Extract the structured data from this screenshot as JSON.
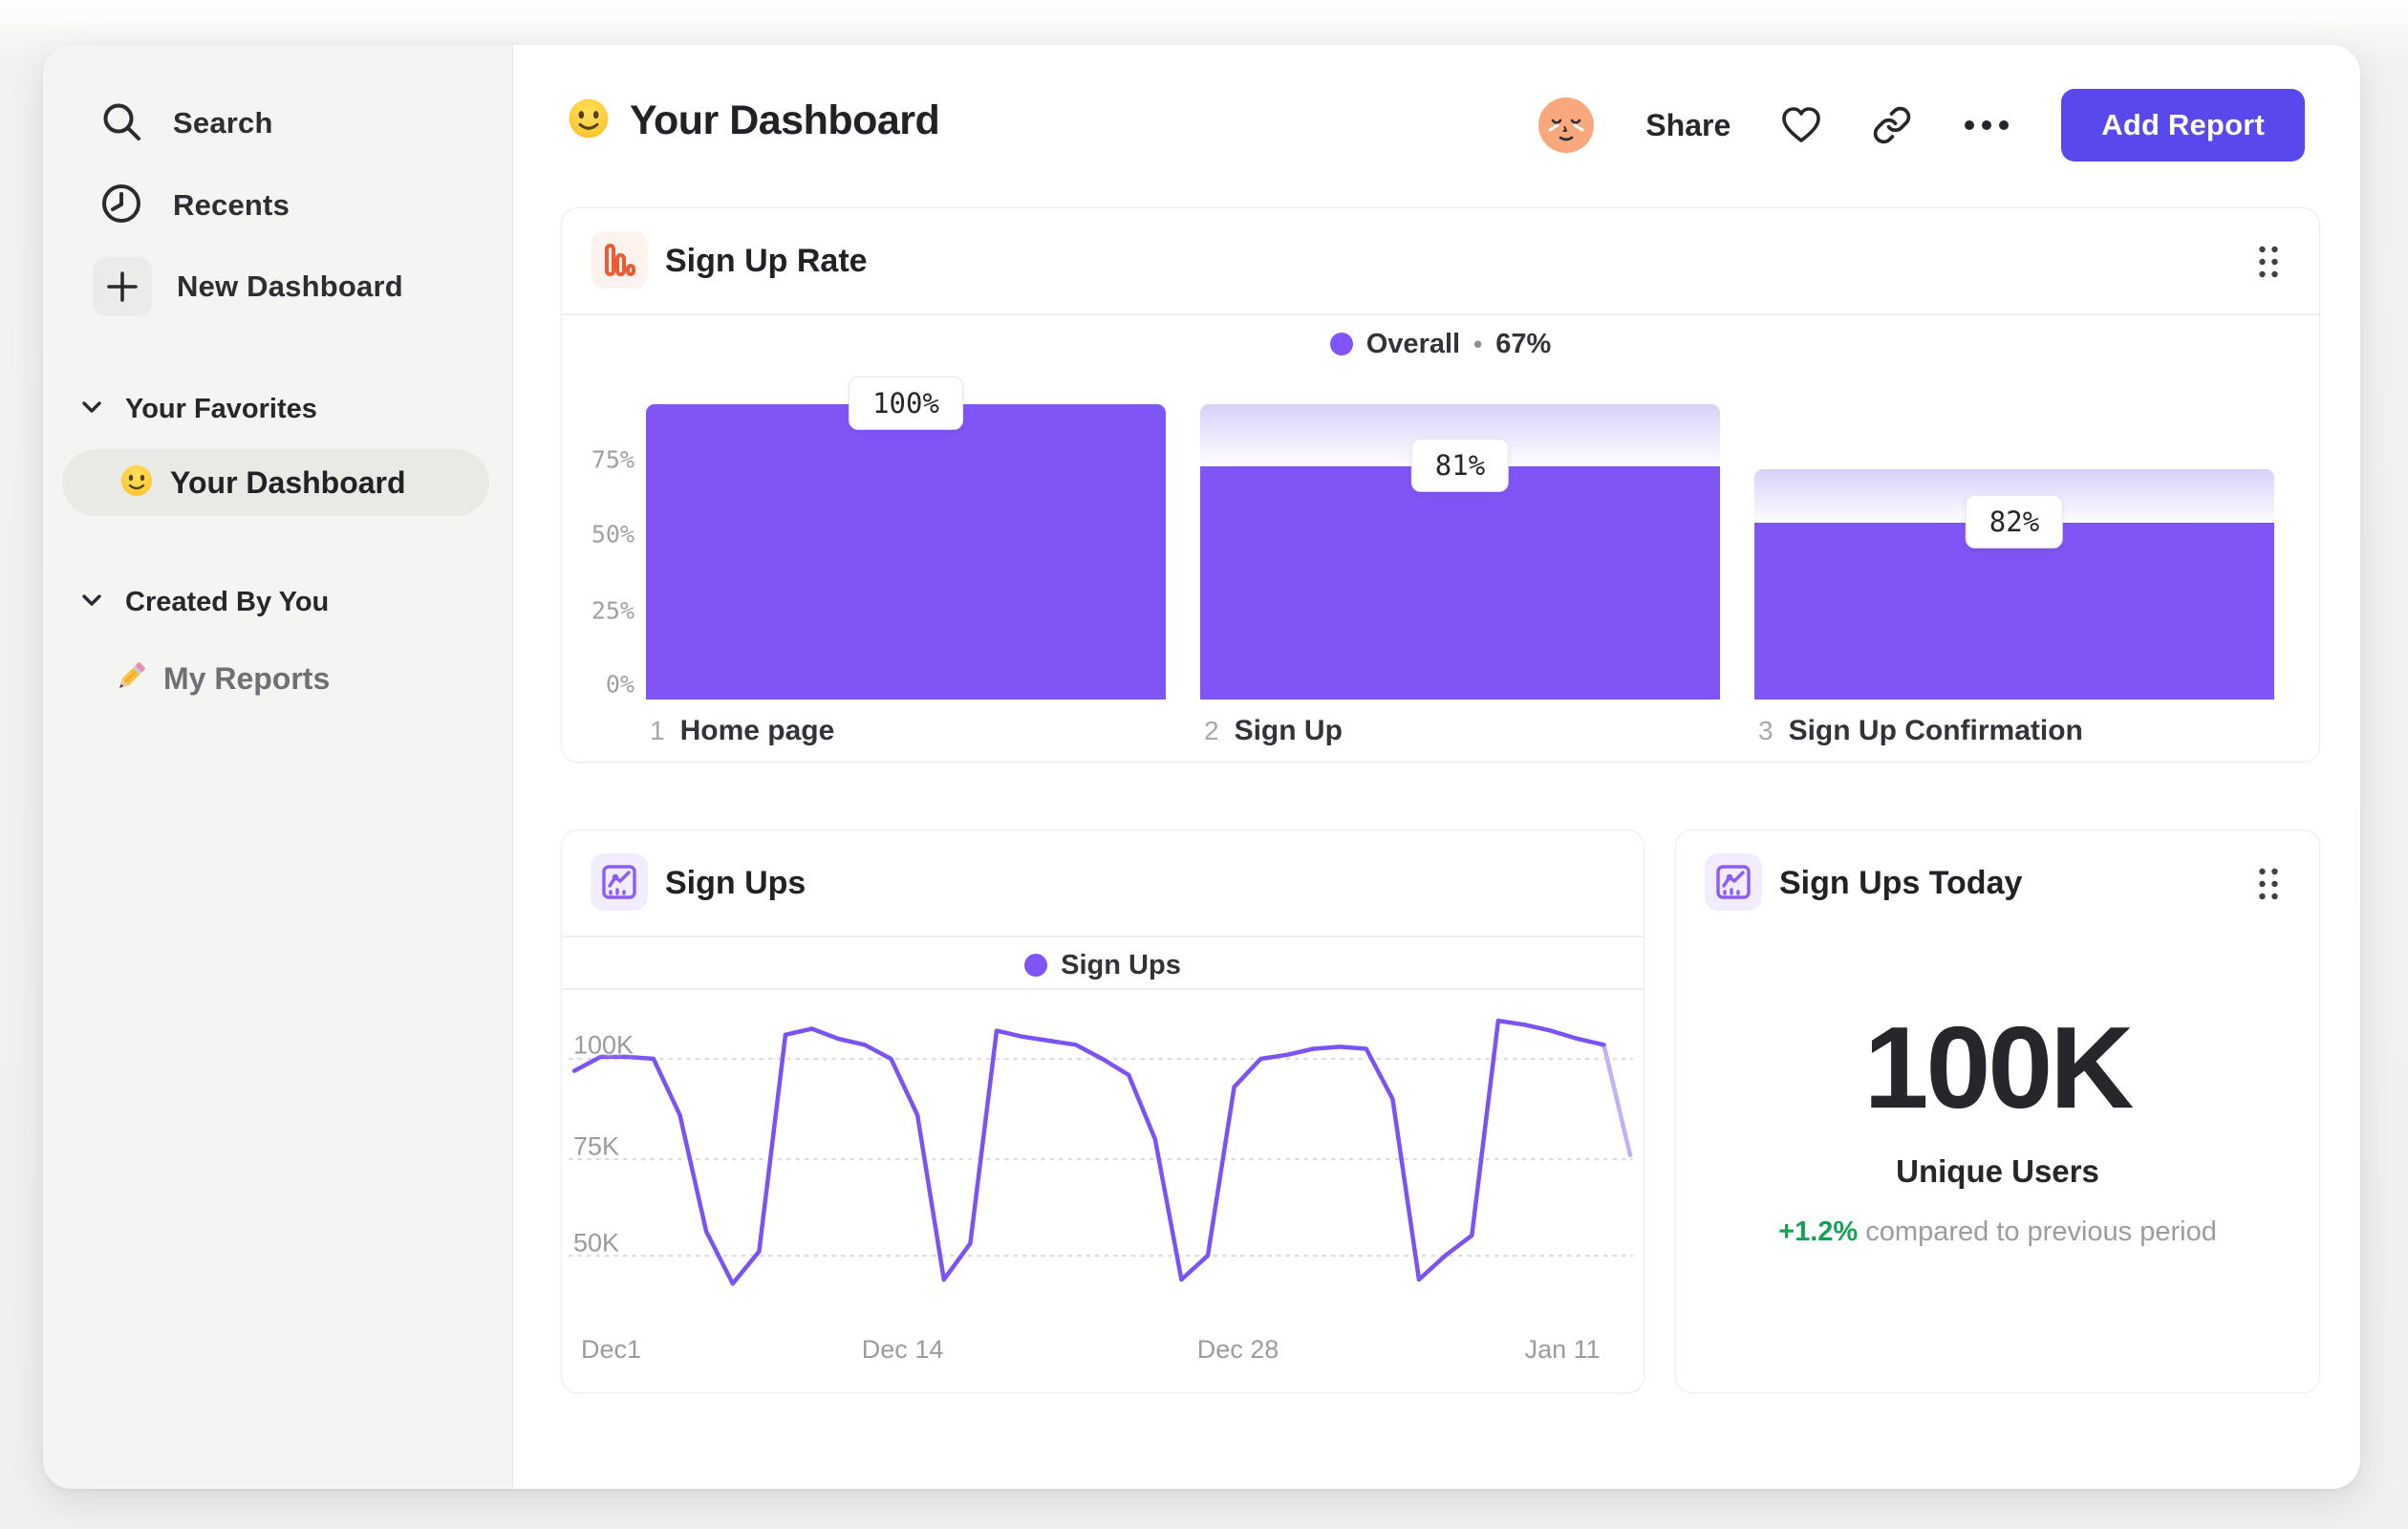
{
  "colors": {
    "accent": "#8055f6",
    "line": "#7b52f4",
    "line_faded": "#c2b1f9",
    "button": "#5948eb",
    "orange_icon": "#ee5a31",
    "green": "#16a056",
    "grid": "#dcdce1"
  },
  "sidebar": {
    "items": [
      {
        "label": "Search"
      },
      {
        "label": "Recents"
      },
      {
        "label": "New Dashboard"
      }
    ],
    "sections": [
      {
        "title": "Your Favorites",
        "items": [
          {
            "label": "Your Dashboard",
            "selected": true
          }
        ]
      },
      {
        "title": "Created By You",
        "items": [
          {
            "label": "My Reports",
            "selected": false
          }
        ]
      }
    ]
  },
  "header": {
    "title": "Your Dashboard",
    "share_label": "Share",
    "add_report_label": "Add Report"
  },
  "cards": {
    "funnel": {
      "title": "Sign Up Rate",
      "legend": {
        "series": "Overall",
        "separator": "•",
        "value": "67%"
      },
      "y_ticks": [
        "75%",
        "50%",
        "25%",
        "0%"
      ],
      "steps": [
        {
          "num": "1",
          "label": "Home page",
          "value_label": "100%",
          "fill_top_pct": 0,
          "cap_top_pct": null
        },
        {
          "num": "2",
          "label": "Sign Up",
          "value_label": "81%",
          "fill_top_pct": 21,
          "cap_top_pct": 0
        },
        {
          "num": "3",
          "label": "Sign Up Confirmation",
          "value_label": "82%",
          "fill_top_pct": 40,
          "cap_top_pct": 22
        }
      ]
    },
    "line": {
      "title": "Sign Ups",
      "legend": "Sign Ups",
      "y_ticks": [
        "100K",
        "75K",
        "50K"
      ],
      "x_ticks": [
        "Dec1",
        "Dec 14",
        "Dec 28",
        "Jan 11"
      ]
    },
    "kpi": {
      "title": "Sign Ups Today",
      "value": "100K",
      "label": "Unique Users",
      "delta": "+1.2%",
      "delta_caption": "compared to previous period"
    }
  },
  "chart_data": [
    {
      "type": "bar",
      "subtype": "funnel",
      "title": "Sign Up Rate",
      "series_name": "Overall",
      "overall_conversion_pct": 67,
      "ylim": [
        0,
        100
      ],
      "y_ticks": [
        "0%",
        "25%",
        "50%",
        "75%"
      ],
      "steps": [
        {
          "step": 1,
          "label": "Home page",
          "conversion_pct": 100
        },
        {
          "step": 2,
          "label": "Sign Up",
          "conversion_pct": 81
        },
        {
          "step": 3,
          "label": "Sign Up Confirmation",
          "conversion_pct": 82
        }
      ]
    },
    {
      "type": "line",
      "title": "Sign Ups",
      "x_ticks": [
        "Dec1",
        "Dec 14",
        "Dec 28",
        "Jan 11"
      ],
      "ylim_k": [
        40,
        115
      ],
      "grid": "dashed-horizontal",
      "legend_position": "top-center",
      "fade_from_index": 39,
      "series": [
        {
          "name": "Sign Ups",
          "values_k": [
            97,
            100.5,
            100.5,
            100,
            86,
            57,
            44,
            52,
            106,
            107.5,
            105,
            103.5,
            100,
            86,
            45,
            54,
            107,
            105.5,
            104.5,
            103.5,
            100,
            96,
            80,
            45,
            51,
            93,
            100,
            101,
            102.5,
            103,
            102.5,
            90,
            45,
            51,
            56,
            109.5,
            108.5,
            107,
            105,
            103.5,
            76
          ]
        }
      ]
    },
    {
      "type": "number",
      "title": "Sign Ups Today",
      "value": "100K",
      "metric": "Unique Users",
      "delta_pct": "+1.2%",
      "comparison": "compared to previous period"
    }
  ]
}
